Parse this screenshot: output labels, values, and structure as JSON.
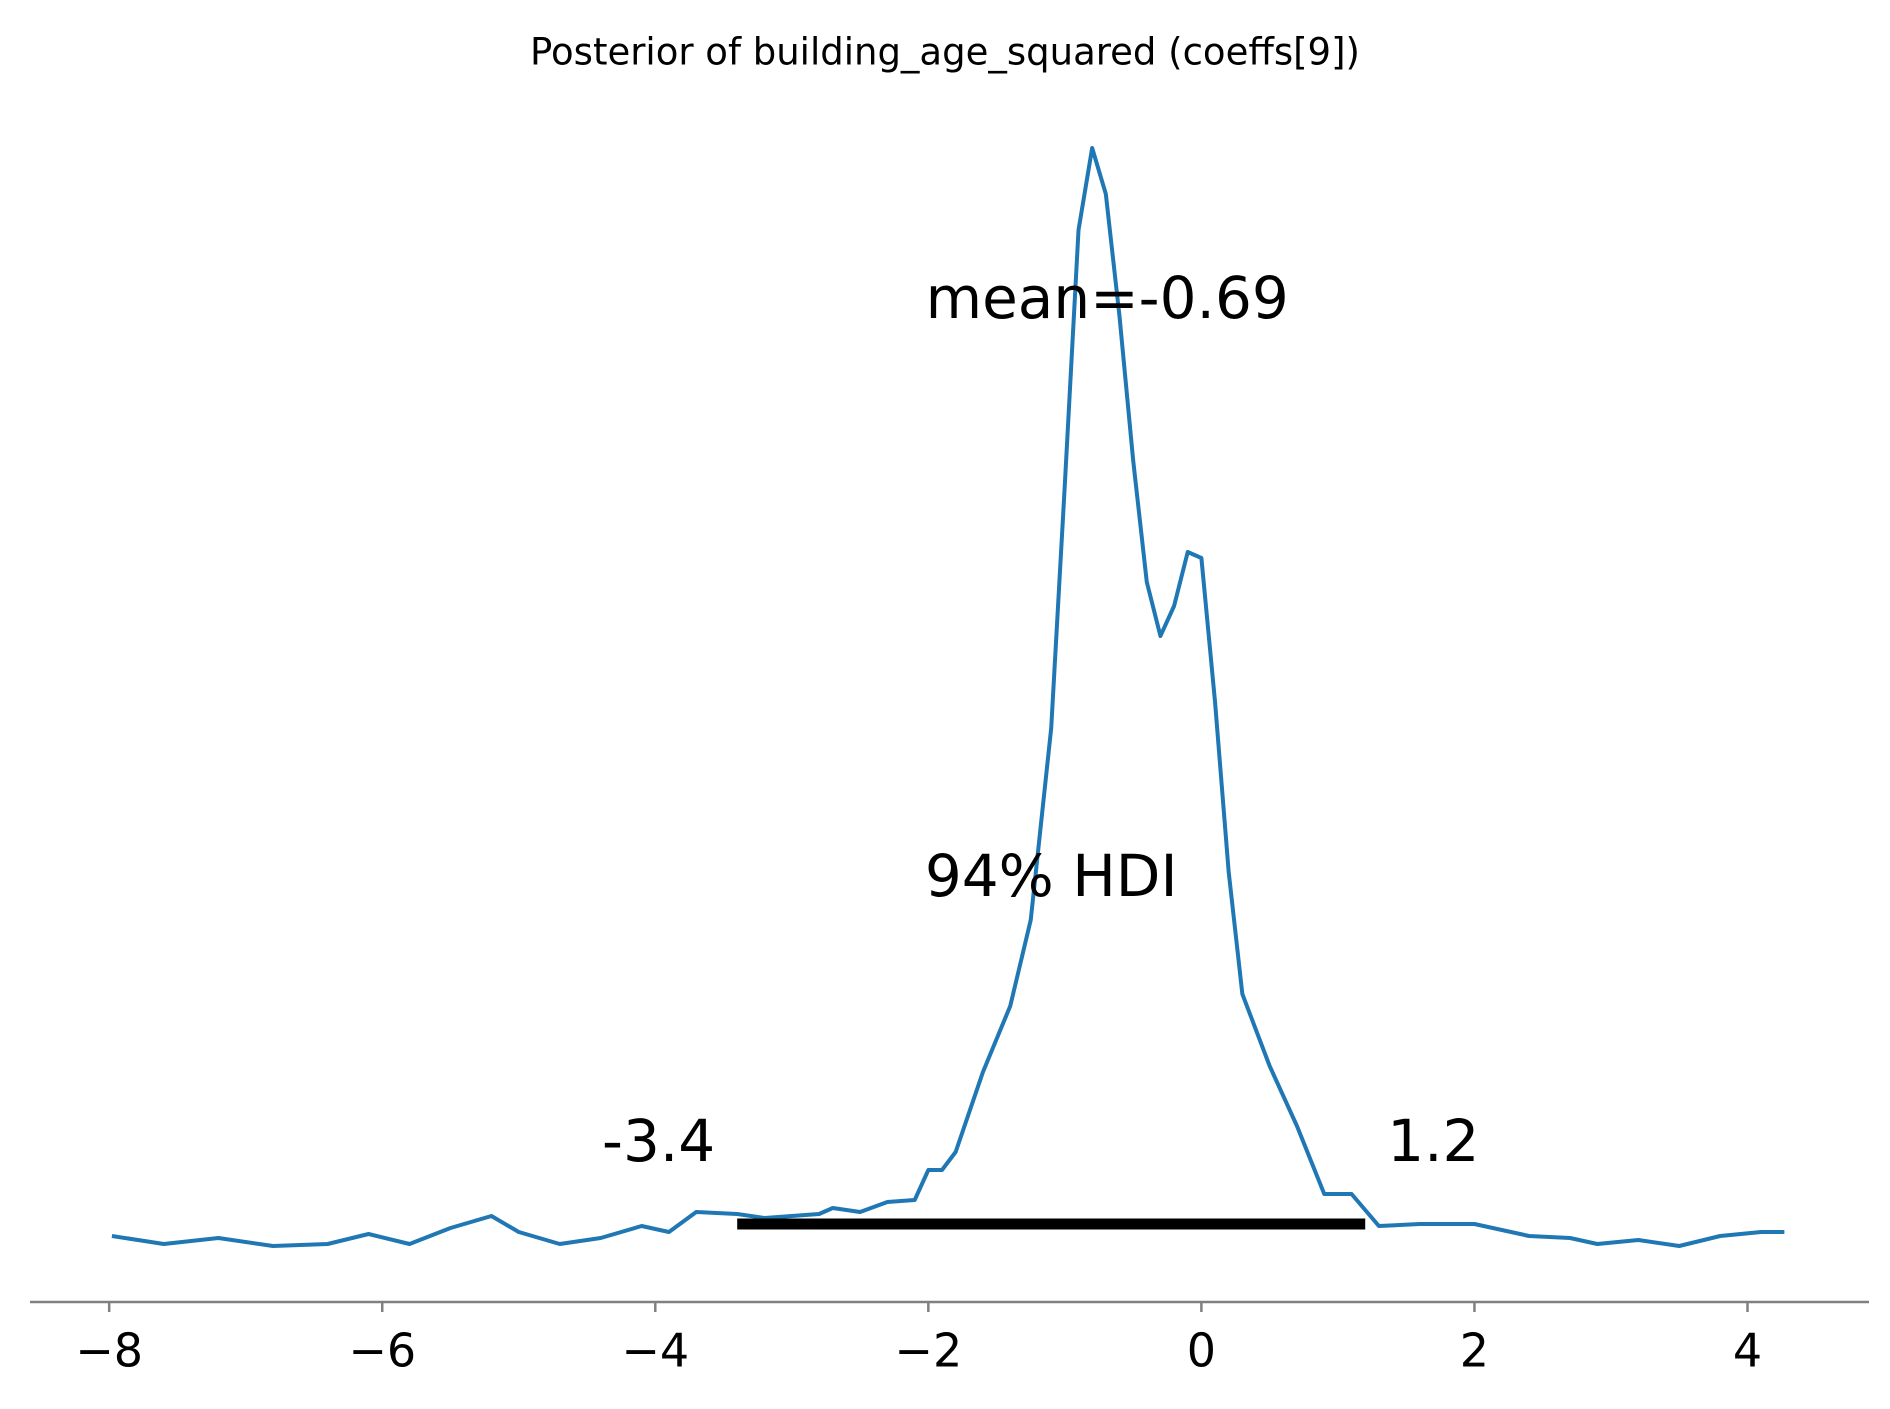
{
  "chart_data": {
    "type": "kde",
    "title": "Posterior of building_age_squared (coeffs[9])",
    "color": "#1f77b4",
    "x": [
      -7.98,
      -7.6,
      -7.2,
      -6.8,
      -6.4,
      -6.1,
      -5.8,
      -5.5,
      -5.2,
      -5.0,
      -4.7,
      -4.4,
      -4.1,
      -3.9,
      -3.7,
      -3.4,
      -3.2,
      -3.0,
      -2.8,
      -2.7,
      -2.5,
      -2.3,
      -2.1,
      -2.0,
      -1.9,
      -1.8,
      -1.6,
      -1.4,
      -1.25,
      -1.1,
      -1.0,
      -0.9,
      -0.8,
      -0.7,
      -0.6,
      -0.5,
      -0.4,
      -0.3,
      -0.2,
      -0.1,
      0.0,
      0.1,
      0.2,
      0.3,
      0.5,
      0.7,
      0.9,
      1.1,
      1.3,
      1.6,
      2.0,
      2.4,
      2.7,
      2.9,
      3.2,
      3.5,
      3.8,
      4.1,
      4.27
    ],
    "values": [
      0.006,
      0.002,
      0.005,
      0.001,
      0.002,
      0.007,
      0.002,
      0.01,
      0.016,
      0.008,
      0.002,
      0.005,
      0.011,
      0.008,
      0.018,
      0.017,
      0.015,
      0.016,
      0.017,
      0.02,
      0.018,
      0.023,
      0.024,
      0.039,
      0.039,
      0.048,
      0.088,
      0.121,
      0.164,
      0.26,
      0.382,
      0.509,
      0.55,
      0.527,
      0.466,
      0.394,
      0.333,
      0.306,
      0.321,
      0.348,
      0.345,
      0.273,
      0.188,
      0.127,
      0.091,
      0.061,
      0.027,
      0.027,
      0.011,
      0.012,
      0.012,
      0.006,
      0.005,
      0.002,
      0.004,
      0.001,
      0.006,
      0.008,
      0.008
    ],
    "mean": {
      "value": -0.69,
      "label": "mean=-0.69"
    },
    "hdi": {
      "label": "94% HDI",
      "values": [
        -3.4,
        1.2
      ],
      "color": "#000000"
    },
    "xlim": [
      -8.58,
      4.89
    ],
    "ylim": [
      -0.027,
      0.575
    ],
    "xticks": [
      {
        "value": -8,
        "label": "−8"
      },
      {
        "value": -6,
        "label": "−6"
      },
      {
        "value": -4,
        "label": "−4"
      },
      {
        "value": -2,
        "label": "−2"
      },
      {
        "value": 0,
        "label": "0"
      },
      {
        "value": 2,
        "label": "2"
      },
      {
        "value": 4,
        "label": "4"
      }
    ]
  }
}
